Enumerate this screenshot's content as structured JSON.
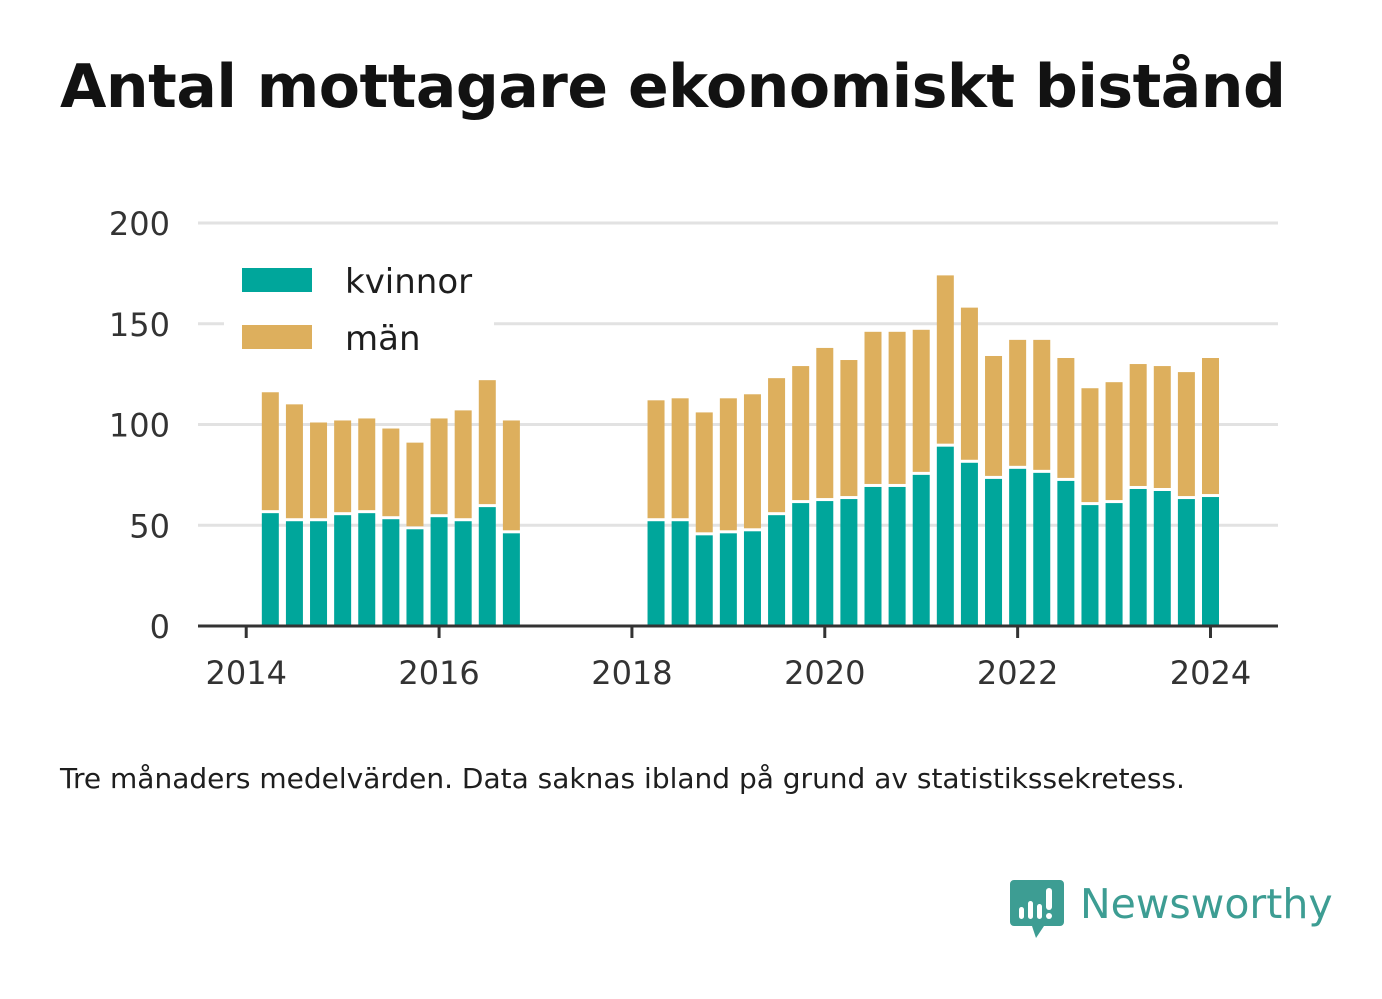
{
  "title": "Antal mottagare ekonomiskt bistånd",
  "note": "Tre månaders medelvärden. Data saknas ibland på grund av statistikssekretess.",
  "brand": {
    "name": "Newsworthy",
    "icon": "newsworthy-bar-chart-logo-icon"
  },
  "colors": {
    "kvinnor": "#00a69b",
    "man": "#ddaf5d",
    "grid": "#e2e2e2",
    "axis": "#333333"
  },
  "chart_data": {
    "type": "bar",
    "stacked": true,
    "x_tick_labels": [
      "2014",
      "2016",
      "2018",
      "2020",
      "2022",
      "2024"
    ],
    "x_ticks": [
      2014,
      2016,
      2018,
      2020,
      2022,
      2024
    ],
    "y_tick_labels": [
      "0",
      "50",
      "100",
      "150",
      "200"
    ],
    "y_ticks": [
      0,
      50,
      100,
      150,
      200
    ],
    "ylim": [
      0,
      200
    ],
    "xlim": [
      2013.5,
      2024.7
    ],
    "grid": true,
    "legend_placement": "top-left",
    "x": [
      2014.25,
      2014.5,
      2014.75,
      2015.0,
      2015.25,
      2015.5,
      2015.75,
      2016.0,
      2016.25,
      2016.5,
      2016.75,
      2018.25,
      2018.5,
      2018.75,
      2019.0,
      2019.25,
      2019.5,
      2019.75,
      2020.0,
      2020.25,
      2020.5,
      2020.75,
      2021.0,
      2021.25,
      2021.5,
      2021.75,
      2022.0,
      2022.25,
      2022.5,
      2022.75,
      2023.0,
      2023.25,
      2023.5,
      2023.75,
      2024.0
    ],
    "series": [
      {
        "name": "kvinnor",
        "color": "#00a69b",
        "values": [
          56,
          52,
          52,
          55,
          56,
          53,
          48,
          54,
          52,
          59,
          46,
          52,
          52,
          45,
          46,
          47,
          55,
          61,
          62,
          63,
          69,
          69,
          75,
          89,
          81,
          73,
          78,
          76,
          72,
          60,
          61,
          68,
          67,
          63,
          64
        ]
      },
      {
        "name": "män",
        "color": "#ddaf5d",
        "values": [
          60,
          58,
          49,
          47,
          47,
          45,
          43,
          49,
          55,
          63,
          56,
          60,
          61,
          61,
          67,
          68,
          68,
          68,
          76,
          69,
          77,
          77,
          72,
          85,
          77,
          61,
          64,
          66,
          61,
          58,
          60,
          62,
          62,
          63,
          69
        ]
      }
    ]
  }
}
